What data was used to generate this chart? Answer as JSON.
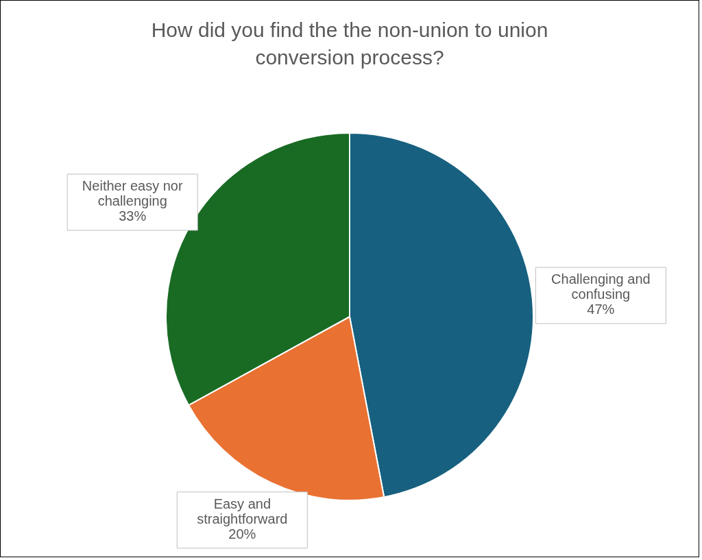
{
  "chart_data": {
    "type": "pie",
    "title": "How did you find the the non-union to union conversion process?",
    "categories": [
      "Challenging and confusing",
      "Easy and straightforward",
      "Neither easy nor challenging"
    ],
    "values": [
      47,
      20,
      33
    ],
    "colors": [
      "#17607f",
      "#e97132",
      "#196b24"
    ],
    "value_labels": [
      "47%",
      "20%",
      "33%"
    ]
  }
}
